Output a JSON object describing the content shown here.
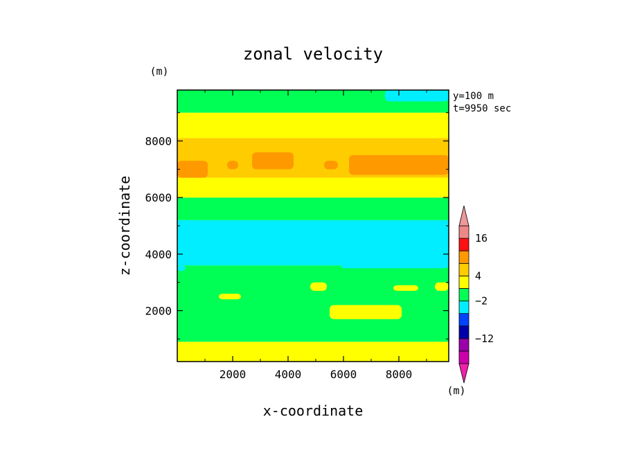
{
  "chart_data": {
    "type": "heatmap",
    "title": "zonal velocity",
    "xlabel": "x-coordinate",
    "ylabel": "z-coordinate",
    "y_unit": "(m)",
    "annotations": [
      "y=100 m",
      "t=9950 sec"
    ],
    "xlim": [
      0,
      9800
    ],
    "ylim": [
      200,
      9800
    ],
    "xticks": [
      2000,
      4000,
      6000,
      8000
    ],
    "yticks": [
      2000,
      4000,
      6000,
      8000
    ],
    "colorbar": {
      "unit": "(m)",
      "tick_labels": [
        {
          "label": "16",
          "value": 16
        },
        {
          "label": "4",
          "value": 4
        },
        {
          "label": "−2",
          "value": -2
        },
        {
          "label": "−12",
          "value": -12
        }
      ],
      "levels": [
        {
          "value": -20,
          "color": "#cc00aa"
        },
        {
          "value": -16,
          "color": "#9900aa"
        },
        {
          "value": -12,
          "color": "#0000aa"
        },
        {
          "value": -8,
          "color": "#0044ff"
        },
        {
          "value": -4,
          "color": "#00eeff"
        },
        {
          "value": -2,
          "color": "#00ff55"
        },
        {
          "value": 2,
          "color": "#ffff00"
        },
        {
          "value": 4,
          "color": "#ffcc00"
        },
        {
          "value": 8,
          "color": "#ff9900"
        },
        {
          "value": 12,
          "color": "#ff1111"
        },
        {
          "value": 16,
          "color": "#ee8888"
        }
      ],
      "under_color": "#ee22aa",
      "over_color": "#ee9999"
    },
    "bands": [
      {
        "z": [
          200,
          900
        ],
        "color": "#ffff00"
      },
      {
        "z": [
          900,
          3600
        ],
        "color": "#00ff55"
      },
      {
        "z": [
          3600,
          5200
        ],
        "color": "#00eeff"
      },
      {
        "z": [
          5200,
          6000
        ],
        "color": "#00ff55"
      },
      {
        "z": [
          6000,
          6700
        ],
        "color": "#ffff00"
      },
      {
        "z": [
          6700,
          8100
        ],
        "color": "#ffcc00"
      },
      {
        "z": [
          8100,
          9000
        ],
        "color": "#ffff00"
      },
      {
        "z": [
          9000,
          9800
        ],
        "color": "#00ff55"
      }
    ],
    "patches": [
      {
        "x": [
          0,
          1100
        ],
        "z": [
          6700,
          7300
        ],
        "color": "#ff9900"
      },
      {
        "x": [
          1800,
          2200
        ],
        "z": [
          7000,
          7300
        ],
        "color": "#ff9900"
      },
      {
        "x": [
          2700,
          4200
        ],
        "z": [
          7000,
          7600
        ],
        "color": "#ff9900"
      },
      {
        "x": [
          5300,
          5800
        ],
        "z": [
          7000,
          7300
        ],
        "color": "#ff9900"
      },
      {
        "x": [
          6200,
          9800
        ],
        "z": [
          6800,
          7500
        ],
        "color": "#ff9900"
      },
      {
        "x": [
          7500,
          9800
        ],
        "z": [
          9400,
          9800
        ],
        "color": "#00eeff"
      },
      {
        "x": [
          5500,
          8100
        ],
        "z": [
          1700,
          2200
        ],
        "color": "#ffff00"
      },
      {
        "x": [
          1500,
          2300
        ],
        "z": [
          2400,
          2600
        ],
        "color": "#ffff00"
      },
      {
        "x": [
          4800,
          5400
        ],
        "z": [
          2700,
          3000
        ],
        "color": "#ffff00"
      },
      {
        "x": [
          7800,
          8700
        ],
        "z": [
          2700,
          2900
        ],
        "color": "#ffff00"
      },
      {
        "x": [
          9300,
          9800
        ],
        "z": [
          2700,
          3000
        ],
        "color": "#ffff00"
      },
      {
        "x": [
          0,
          300
        ],
        "z": [
          3400,
          3600
        ],
        "color": "#00eeff"
      },
      {
        "x": [
          5900,
          9800
        ],
        "z": [
          3500,
          3900
        ],
        "color": "#00eeff"
      }
    ]
  }
}
